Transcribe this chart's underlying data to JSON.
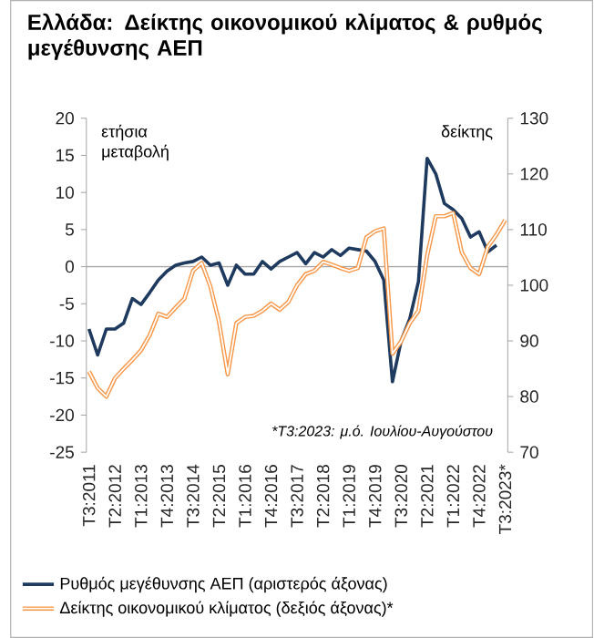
{
  "chart_data": {
    "type": "line",
    "title": "Ελλάδα: Δείκτης οικονομικού κλίματος & ρυθμός μεγέθυνσης ΑΕΠ",
    "ylabel": "ετήσια μεταβολή",
    "y2label": "δείκτης",
    "categories": [
      "Τ3:2011",
      null,
      null,
      "Τ2:2012",
      null,
      null,
      "Τ1:2013",
      null,
      null,
      "Τ4:2013",
      null,
      null,
      "Τ3:2014",
      null,
      null,
      "Τ2:2015",
      null,
      null,
      "Τ1:2016",
      null,
      null,
      "Τ4:2016",
      null,
      null,
      "Τ3:2017",
      null,
      null,
      "Τ2:2018",
      null,
      null,
      "Τ1:2019",
      null,
      null,
      "Τ4:2019",
      null,
      null,
      "Τ3:2020",
      null,
      null,
      "Τ2:2021",
      null,
      null,
      "Τ1:2022",
      null,
      null,
      "Τ4:2022",
      null,
      null,
      "Τ3:2023*"
    ],
    "series": [
      {
        "name": "Ρυθμός μεγέθυνσης ΑΕΠ (αριστερός άξονας)",
        "color": "#1f3a5f",
        "values": [
          -8.4,
          -11.9,
          -8.4,
          -8.4,
          -7.6,
          -4.3,
          -5.1,
          -3.5,
          -1.8,
          -0.6,
          0.2,
          0.5,
          0.7,
          1.3,
          0.2,
          0.5,
          -2.5,
          0.2,
          -1.0,
          -1.0,
          0.7,
          -0.3,
          0.7,
          1.3,
          1.9,
          0.4,
          1.9,
          1.3,
          2.3,
          1.5,
          2.5,
          2.3,
          2.1,
          0.7,
          -1.8,
          -15.5,
          -10.0,
          -7.0,
          -2.0,
          14.6,
          12.5,
          8.5,
          7.7,
          6.5,
          4.0,
          4.7,
          2.0,
          2.9,
          null
        ]
      },
      {
        "name": "Δείκτης οικονομικού κλίματος (δεξιός άξονας)*",
        "color": "#f79646",
        "axis": "y2",
        "values": [
          84.5,
          81.5,
          80.0,
          83.3,
          85.0,
          86.6,
          88.3,
          91.0,
          94.9,
          94.3,
          96.0,
          97.6,
          102.6,
          104.0,
          99.8,
          93.4,
          84.0,
          93.2,
          94.3,
          94.5,
          95.4,
          96.7,
          95.6,
          97.0,
          100.0,
          102.0,
          102.6,
          104.2,
          103.7,
          103.1,
          102.6,
          103.1,
          108.6,
          109.7,
          110.2,
          87.7,
          89.9,
          93.2,
          95.4,
          105.3,
          112.4,
          112.4,
          113.0,
          105.9,
          103.1,
          102.0,
          106.9,
          109.1,
          111.7
        ]
      }
    ],
    "ylim": [
      -25,
      20
    ],
    "yticks": [
      -25,
      -20,
      -15,
      -10,
      -5,
      0,
      5,
      10,
      15,
      20
    ],
    "y2lim": [
      70,
      130
    ],
    "y2ticks": [
      70,
      80,
      90,
      100,
      110,
      120,
      130
    ],
    "ref_lines": [
      {
        "axis": "y",
        "value": 0,
        "color": "#a6a6a6"
      }
    ],
    "annotations": [
      "*Τ3:2023: μ.ό. Ιουλίου-Αυγούστου"
    ],
    "legend": "bottom"
  }
}
